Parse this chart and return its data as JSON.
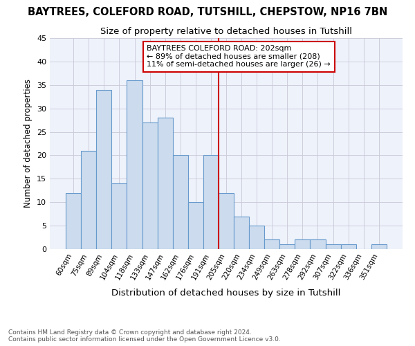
{
  "title": "BAYTREES, COLEFORD ROAD, TUTSHILL, CHEPSTOW, NP16 7BN",
  "subtitle": "Size of property relative to detached houses in Tutshill",
  "xlabel": "Distribution of detached houses by size in Tutshill",
  "ylabel": "Number of detached properties",
  "categories": [
    "60sqm",
    "75sqm",
    "89sqm",
    "104sqm",
    "118sqm",
    "133sqm",
    "147sqm",
    "162sqm",
    "176sqm",
    "191sqm",
    "205sqm",
    "220sqm",
    "234sqm",
    "249sqm",
    "263sqm",
    "278sqm",
    "292sqm",
    "307sqm",
    "322sqm",
    "336sqm",
    "351sqm"
  ],
  "values": [
    12,
    21,
    34,
    14,
    36,
    27,
    28,
    20,
    10,
    20,
    12,
    7,
    5,
    2,
    1,
    2,
    2,
    1,
    1,
    0,
    1
  ],
  "bar_color": "#ccdcee",
  "bar_edge_color": "#6699cc",
  "vline_at_index": 10,
  "vline_color": "#cc0000",
  "annotation_line1": "BAYTREES COLEFORD ROAD: 202sqm",
  "annotation_line2": "← 89% of detached houses are smaller (208)",
  "annotation_line3": "11% of semi-detached houses are larger (26) →",
  "annotation_box_color": "#cc0000",
  "grid_color": "#c8c8d8",
  "background_color": "#eef2fa",
  "footnote": "Contains HM Land Registry data © Crown copyright and database right 2024.\nContains public sector information licensed under the Open Government Licence v3.0.",
  "ylim": [
    0,
    45
  ],
  "yticks": [
    0,
    5,
    10,
    15,
    20,
    25,
    30,
    35,
    40,
    45
  ]
}
